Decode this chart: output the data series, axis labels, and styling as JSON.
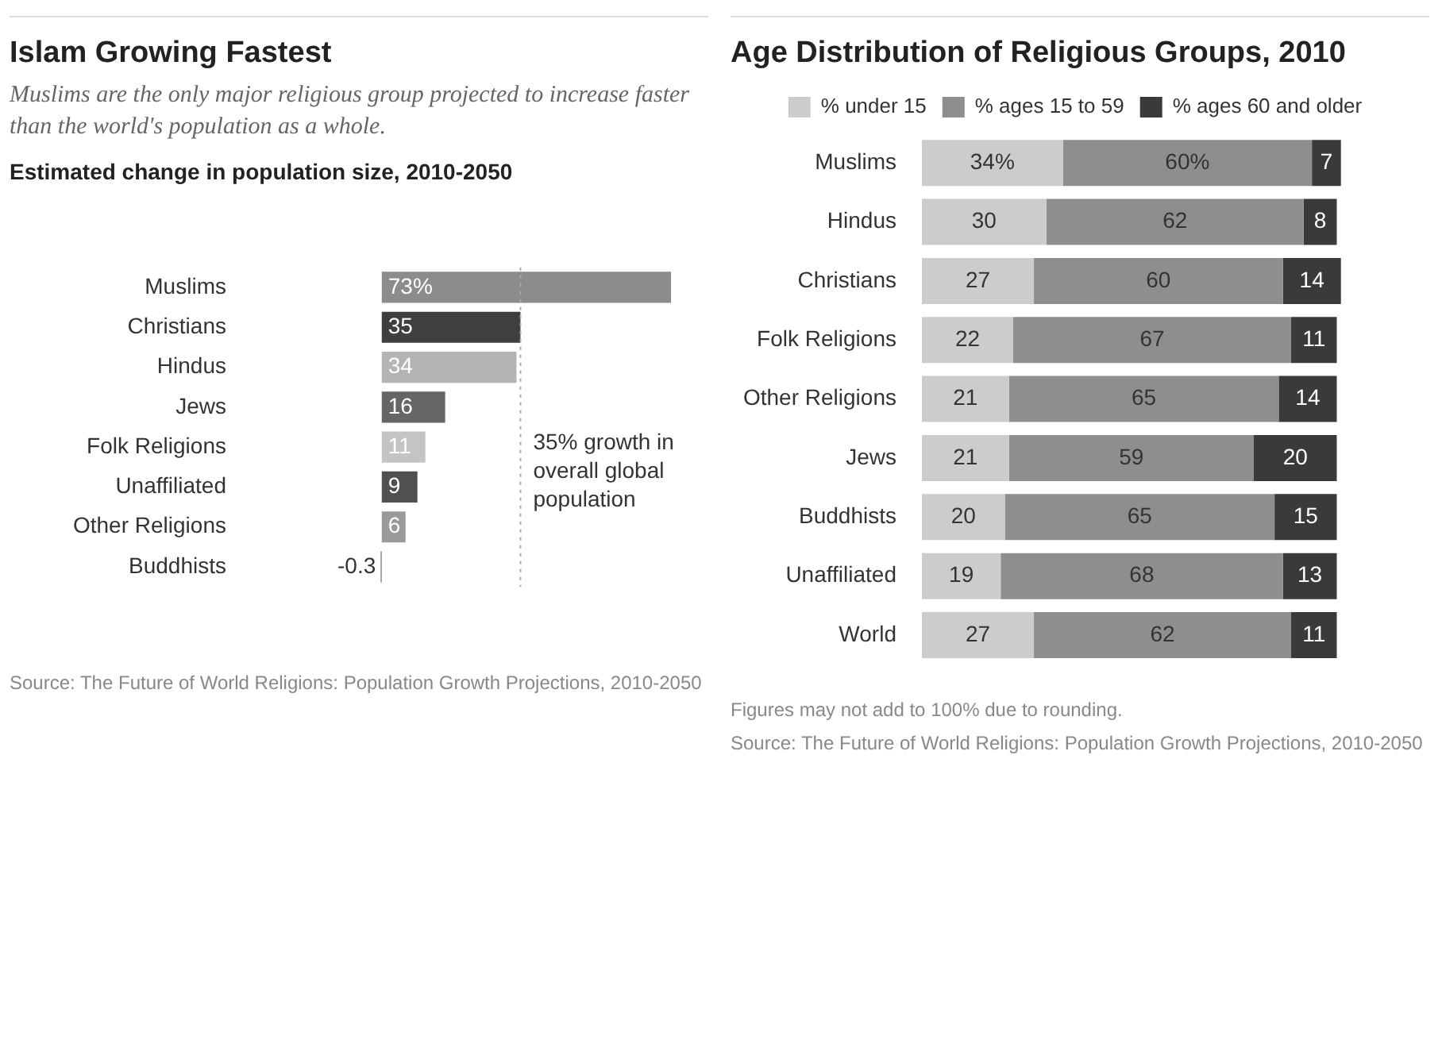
{
  "chart_data": [
    {
      "type": "bar",
      "orientation": "horizontal",
      "title": "Islam Growing Fastest",
      "subtitle": "Muslims are the only major religious group projected to increase faster than the world's population as a whole.",
      "xlabel": "Estimated change in population size, 2010-2050",
      "categories": [
        "Muslims",
        "Christians",
        "Hindus",
        "Jews",
        "Folk Religions",
        "Unaffiliated",
        "Other Religions",
        "Buddhists"
      ],
      "values": [
        73,
        35,
        34,
        16,
        11,
        9,
        6,
        -0.3
      ],
      "value_labels": [
        "73%",
        "35",
        "34",
        "16",
        "11",
        "9",
        "6",
        "-0.3"
      ],
      "colors": [
        "#8c8c8c",
        "#3f3f3f",
        "#b4b4b4",
        "#666666",
        "#c4c4c4",
        "#505050",
        "#9a9a9a",
        "#8c8c8c"
      ],
      "tick_labels": "y",
      "ref_lines": [
        {
          "axis": "x",
          "value": 35,
          "label": "35% growth in overall global population",
          "line_style": "dotted",
          "color": "#aaaaaa"
        }
      ],
      "annotations": [
        "Source: The Future of World Religions: Population Growth Projections, 2010-2050"
      ]
    },
    {
      "type": "bar",
      "orientation": "horizontal",
      "stacked": true,
      "title": "Age Distribution of Religious Groups, 2010",
      "categories": [
        "Muslims",
        "Hindus",
        "Christians",
        "Folk Religions",
        "Other Religions",
        "Jews",
        "Buddhists",
        "Unaffiliated",
        "World"
      ],
      "series": [
        {
          "name": "% under 15",
          "color": "#cccccc",
          "values": [
            34,
            30,
            27,
            22,
            21,
            21,
            20,
            19,
            27
          ],
          "value_labels": [
            "34%",
            "30",
            "27",
            "22",
            "21",
            "21",
            "20",
            "19",
            "27"
          ]
        },
        {
          "name": "% ages 15 to 59",
          "color": "#8e8e8e",
          "values": [
            60,
            62,
            60,
            67,
            65,
            59,
            65,
            68,
            62
          ],
          "value_labels": [
            "60%",
            "62",
            "60",
            "67",
            "65",
            "59",
            "65",
            "68",
            "62"
          ]
        },
        {
          "name": "% ages 60 and older",
          "color": "#3a3a3a",
          "values": [
            7,
            8,
            14,
            11,
            14,
            20,
            15,
            13,
            11
          ],
          "value_labels": [
            "7",
            "8",
            "14",
            "11",
            "14",
            "20",
            "15",
            "13",
            "11"
          ]
        }
      ],
      "tick_labels": "y",
      "legend": "top",
      "annotations": [
        "Figures may not add to 100% due to rounding.",
        "Source: The Future of World Religions: Population Growth Projections, 2010-2050"
      ]
    }
  ]
}
